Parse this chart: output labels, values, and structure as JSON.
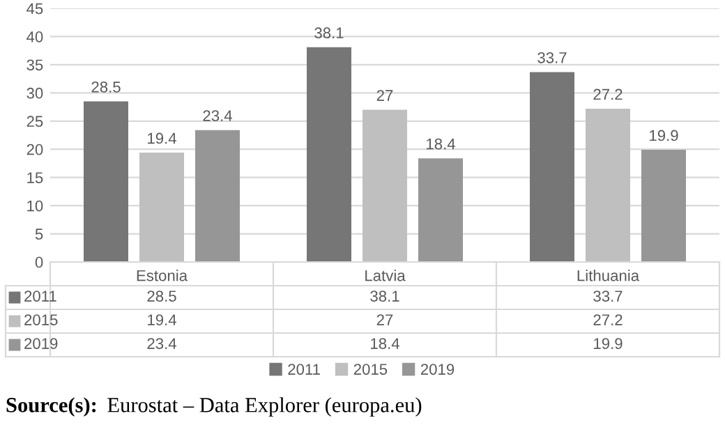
{
  "chart_data": {
    "type": "bar",
    "categories": [
      "Estonia",
      "Latvia",
      "Lithuania"
    ],
    "series": [
      {
        "name": "2011",
        "color": "#767676",
        "values": [
          28.5,
          38.1,
          33.7
        ],
        "value_labels": [
          "28.5",
          "38.1",
          "33.7"
        ]
      },
      {
        "name": "2015",
        "color": "#bfbfbf",
        "values": [
          19.4,
          27,
          27.2
        ],
        "value_labels": [
          "19.4",
          "27",
          "27.2"
        ]
      },
      {
        "name": "2019",
        "color": "#969696",
        "values": [
          23.4,
          18.4,
          19.9
        ],
        "value_labels": [
          "23.4",
          "18.4",
          "19.9"
        ]
      }
    ],
    "ylim": [
      0,
      45
    ],
    "yticks": [
      0,
      5,
      10,
      15,
      20,
      25,
      30,
      35,
      40,
      45
    ],
    "grid": "y",
    "legend": "bottom",
    "annotations": [
      "28.5",
      "38.1",
      "33.7",
      "19.4",
      "27",
      "27.2",
      "23.4",
      "18.4",
      "19.9",
      "Source(s): Eurostat – Data Explorer (europa.eu)"
    ]
  }
}
